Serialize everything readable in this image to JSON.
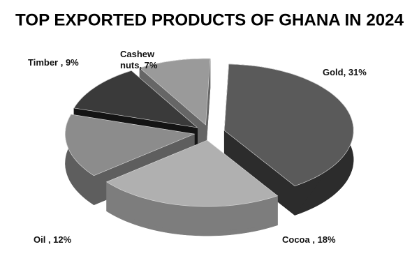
{
  "chart_data": {
    "type": "pie3d",
    "title": "TOP EXPORTED PRODUCTS OF GHANA IN 2024",
    "values": [
      31,
      18,
      12,
      9,
      7
    ],
    "value_labels": [
      "Gold, 31%",
      "Cocoa , 18%",
      "Oil , 12%",
      "Timber , 9%",
      "Cashew nuts, 7%"
    ],
    "colors": [
      "#5a5a5a",
      "#b0b0b0",
      "#8c8c8c",
      "#3a3a3a",
      "#9a9a9a"
    ],
    "side_colors": [
      "#2c2c2c",
      "#7d7d7d",
      "#5e5e5e",
      "#141414",
      "#666666"
    ]
  }
}
